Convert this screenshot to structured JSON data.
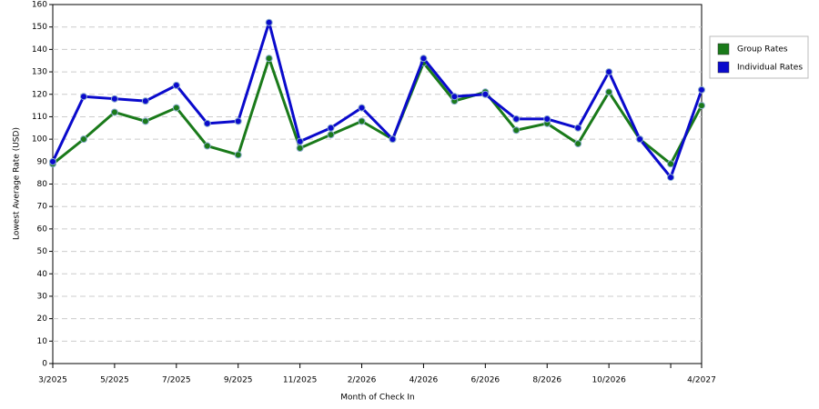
{
  "chart_data": {
    "type": "line",
    "x_label": "Month of Check In",
    "y_label": "Lowest Average Rate (USD)",
    "categories": [
      "3/2025",
      null,
      "5/2025",
      null,
      "7/2025",
      null,
      "9/2025",
      null,
      "11/2025",
      null,
      "2/2026",
      null,
      "4/2026",
      null,
      "6/2026",
      null,
      "8/2026",
      null,
      "10/2026",
      null,
      null,
      "4/2027"
    ],
    "series": [
      {
        "name": "Group Rates",
        "color": "#1a7a1a",
        "values": [
          89,
          100,
          112,
          108,
          114,
          97,
          93,
          136,
          96,
          102,
          108,
          100,
          134,
          117,
          121,
          104,
          107,
          98,
          121,
          100,
          89,
          115
        ]
      },
      {
        "name": "Individual Rates",
        "color": "#0a0acc",
        "values": [
          90,
          119,
          118,
          117,
          124,
          107,
          108,
          152,
          99,
          105,
          114,
          100,
          136,
          119,
          120,
          109,
          109,
          105,
          130,
          100,
          83,
          122
        ]
      }
    ],
    "ylim": [
      0,
      160
    ],
    "yticks": [
      0,
      10,
      20,
      30,
      40,
      50,
      60,
      70,
      80,
      90,
      100,
      110,
      120,
      130,
      140,
      150,
      160
    ],
    "grid": true
  }
}
